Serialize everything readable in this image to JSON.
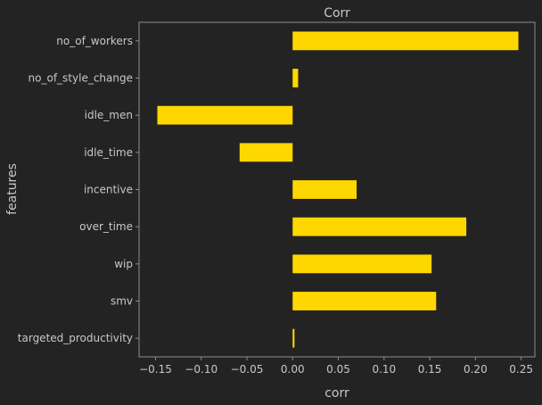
{
  "colors": {
    "background": "#232323",
    "bar": "#ffd700",
    "axes": "#8c8c8c",
    "text": "#c8c8c8"
  },
  "chart_data": {
    "type": "bar",
    "orientation": "horizontal",
    "title": "Corr",
    "xlabel": "corr",
    "ylabel": "features",
    "categories": [
      "targeted_productivity",
      "smv",
      "wip",
      "over_time",
      "incentive",
      "idle_time",
      "idle_men",
      "no_of_style_change",
      "no_of_workers"
    ],
    "values": [
      0.002,
      0.157,
      0.152,
      0.19,
      0.07,
      -0.058,
      -0.148,
      0.006,
      0.247
    ],
    "xlim": [
      -0.168,
      0.265
    ],
    "xticks": [
      -0.15,
      -0.1,
      -0.05,
      0.0,
      0.05,
      0.1,
      0.15,
      0.2,
      0.25
    ],
    "xtick_labels": [
      "−0.15",
      "−0.10",
      "−0.05",
      "0.00",
      "0.05",
      "0.10",
      "0.15",
      "0.20",
      "0.25"
    ],
    "grid": false,
    "legend": "none"
  }
}
